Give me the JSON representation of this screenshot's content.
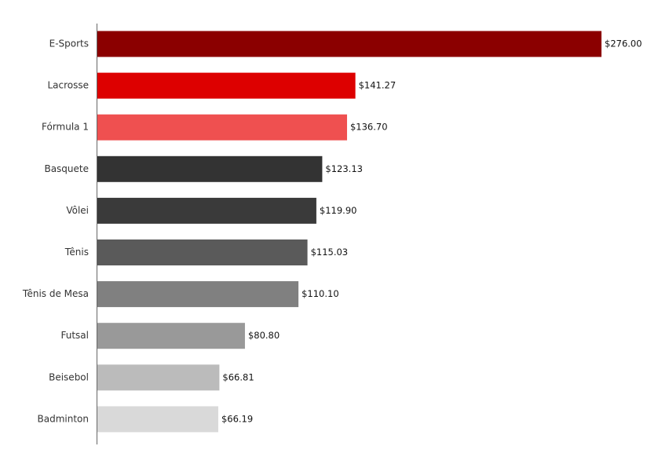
{
  "chart_data": {
    "type": "bar",
    "orientation": "horizontal",
    "categories": [
      "E-Sports",
      "Lacrosse",
      "Fórmula 1",
      "Basquete",
      "Vôlei",
      "Tênis",
      "Tênis de Mesa",
      "Futsal",
      "Beisebol",
      "Badminton"
    ],
    "values": [
      276.0,
      141.27,
      136.7,
      123.13,
      119.9,
      115.03,
      110.1,
      80.8,
      66.81,
      66.19
    ],
    "value_labels": [
      "$276.00",
      "$141.27",
      "$136.70",
      "$123.13",
      "$119.90",
      "$115.03",
      "$110.10",
      "$80.80",
      "$66.81",
      "$66.19"
    ],
    "colors": [
      "#8b0000",
      "#dd0000",
      "#ef5050",
      "#333333",
      "#3a3a3a",
      "#5a5a5a",
      "#808080",
      "#999999",
      "#bbbbbb",
      "#d9d9d9"
    ]
  }
}
